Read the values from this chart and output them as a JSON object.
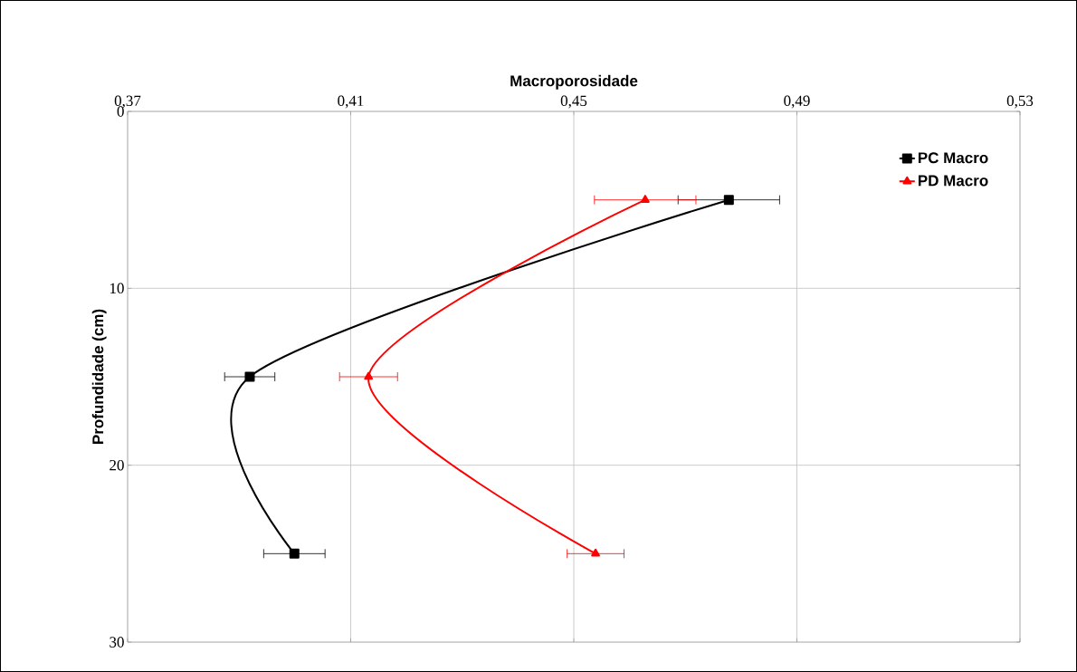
{
  "chart_data": {
    "type": "line",
    "xlabel": "Macroporosidade",
    "ylabel": "Profundidade (cm)",
    "xlim": [
      0.37,
      0.53
    ],
    "xticks": [
      {
        "value": 0.37,
        "label": "0,37"
      },
      {
        "value": 0.41,
        "label": "0,41"
      },
      {
        "value": 0.45,
        "label": "0,45"
      },
      {
        "value": 0.49,
        "label": "0,49"
      },
      {
        "value": 0.53,
        "label": "0,53"
      }
    ],
    "ylim": [
      30,
      0
    ],
    "yticks": [
      0,
      10,
      20,
      30
    ],
    "grid": true,
    "legend": "top right",
    "series": [
      {
        "name": "PC Macro",
        "color": "#000000",
        "marker": "square",
        "x": [
          0.4778,
          0.3919,
          0.3999
        ],
        "values": [
          5,
          15,
          25
        ],
        "xerrors": [
          0.0091,
          0.0045,
          0.0055
        ]
      },
      {
        "name": "PD Macro",
        "color": "#ff0000",
        "marker": "triangle",
        "x": [
          0.4628,
          0.4132,
          0.4539
        ],
        "values": [
          5,
          15,
          25
        ],
        "xerrors": [
          0.0091,
          0.0052,
          0.0051
        ]
      }
    ]
  }
}
